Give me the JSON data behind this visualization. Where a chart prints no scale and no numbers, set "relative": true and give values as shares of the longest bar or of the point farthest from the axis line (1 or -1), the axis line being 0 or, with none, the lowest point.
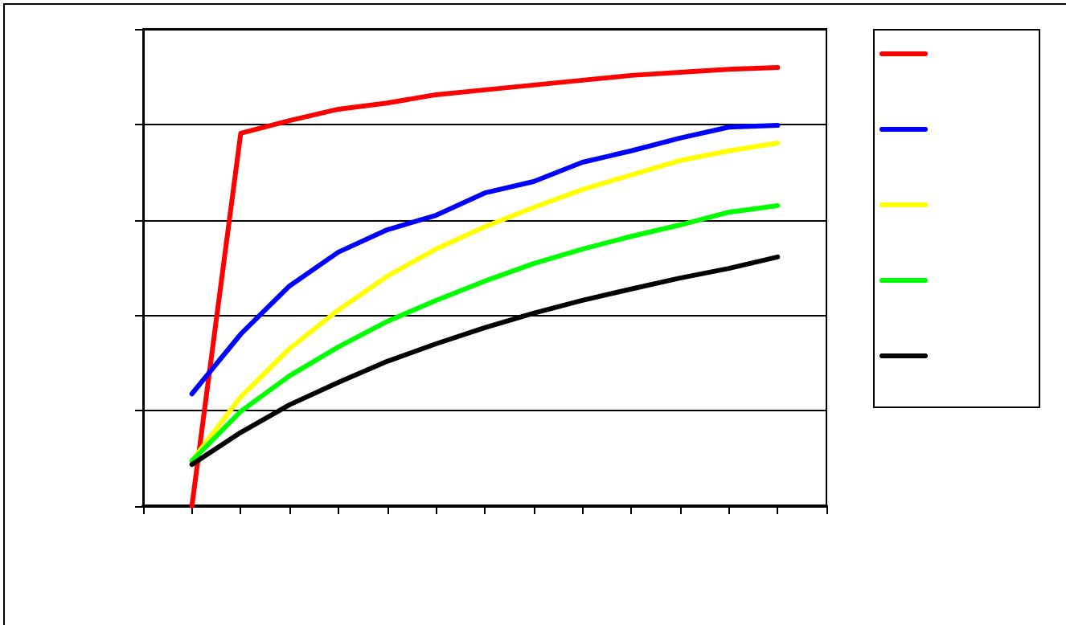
{
  "chart_data": {
    "type": "line",
    "relative": true,
    "grid": "y",
    "marker": "none",
    "line_style": "solid",
    "categories": [
      null,
      null,
      null,
      null,
      null,
      null,
      null,
      null,
      null,
      null,
      null,
      null,
      null,
      null,
      null
    ],
    "series": [
      {
        "color": "#ff0000",
        "values": [
          null,
          0,
          0.85,
          0.879,
          0.905,
          0.919,
          0.938,
          0.949,
          0.96,
          0.971,
          0.982,
          0.989,
          0.996,
          1,
          null
        ]
      },
      {
        "color": "#0000ff",
        "values": [
          null,
          0.256,
          0.392,
          0.502,
          0.579,
          0.63,
          0.663,
          0.714,
          0.74,
          0.784,
          0.81,
          0.839,
          0.864,
          0.868,
          null
        ]
      },
      {
        "color": "#ffff00",
        "values": [
          null,
          0.103,
          0.249,
          0.359,
          0.447,
          0.524,
          0.586,
          0.637,
          0.681,
          0.722,
          0.755,
          0.788,
          0.81,
          0.828,
          null
        ]
      },
      {
        "color": "#00ff00",
        "values": [
          null,
          0.103,
          0.216,
          0.297,
          0.363,
          0.421,
          0.469,
          0.513,
          0.553,
          0.586,
          0.615,
          0.641,
          0.67,
          0.685,
          null
        ]
      },
      {
        "color": "#000000",
        "values": [
          null,
          0.095,
          0.168,
          0.231,
          0.282,
          0.33,
          0.37,
          0.407,
          0.44,
          0.469,
          0.495,
          0.52,
          0.542,
          0.568,
          null
        ]
      }
    ]
  }
}
